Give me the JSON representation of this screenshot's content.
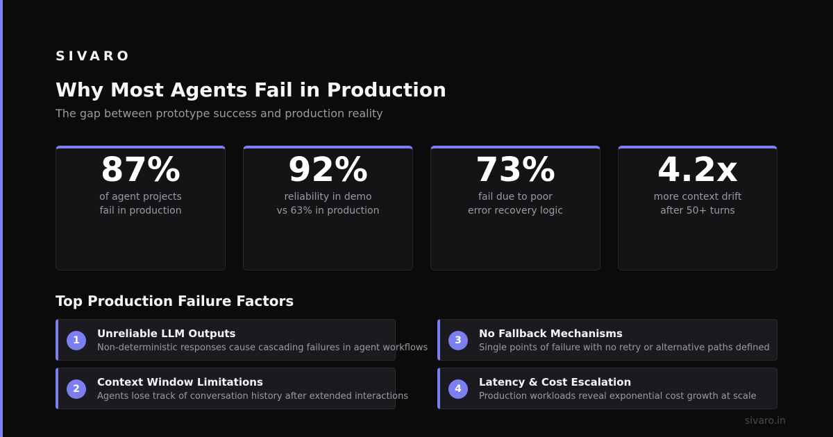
{
  "brand": "SIVARO",
  "title": "Why Most Agents Fail in Production",
  "subtitle": "The gap between prototype success and production reality",
  "accent_color": "#7b7ff0",
  "stats": [
    {
      "value": "87%",
      "label_line1": "of agent projects",
      "label_line2": "fail in production"
    },
    {
      "value": "92%",
      "label_line1": "reliability in demo",
      "label_line2": "vs 63% in production"
    },
    {
      "value": "73%",
      "label_line1": "fail due to poor",
      "label_line2": "error recovery logic"
    },
    {
      "value": "4.2x",
      "label_line1": "more context drift",
      "label_line2": "after 50+ turns"
    }
  ],
  "section_title": "Top Production Failure Factors",
  "factors": [
    {
      "number": "1",
      "title": "Unreliable LLM Outputs",
      "description": "Non-deterministic responses cause cascading failures in agent workflows"
    },
    {
      "number": "2",
      "title": "Context Window Limitations",
      "description": "Agents lose track of conversation history after extended interactions"
    },
    {
      "number": "3",
      "title": "No Fallback Mechanisms",
      "description": "Single points of failure with no retry or alternative paths defined"
    },
    {
      "number": "4",
      "title": "Latency & Cost Escalation",
      "description": "Production workloads reveal exponential cost growth at scale"
    }
  ],
  "footer_url": "sivaro.in"
}
